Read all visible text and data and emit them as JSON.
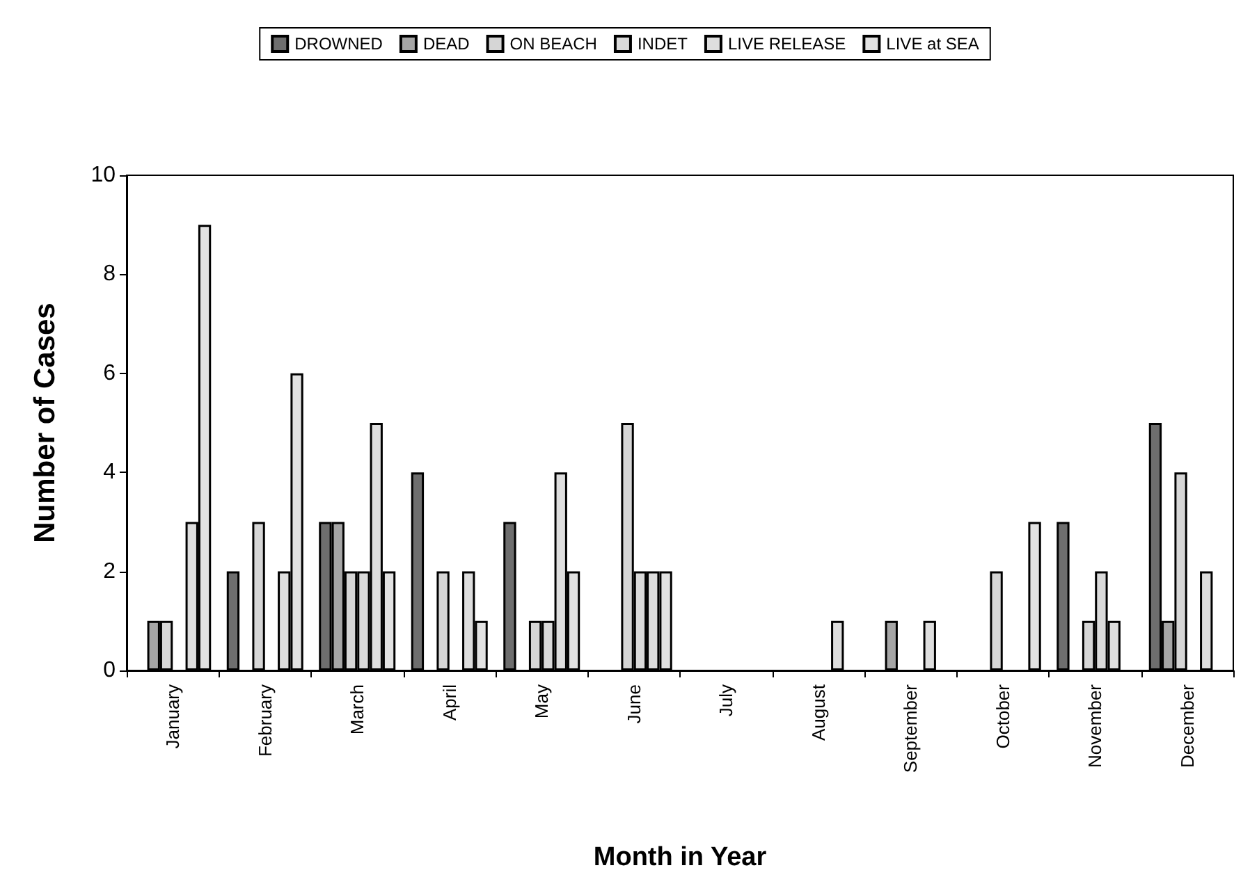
{
  "chart_data": {
    "type": "bar",
    "xlabel": "Month in Year",
    "ylabel": "Number of Cases",
    "categories": [
      "January",
      "February",
      "March",
      "April",
      "May",
      "June",
      "July",
      "August",
      "September",
      "October",
      "November",
      "December"
    ],
    "series": [
      {
        "name": "DROWNED",
        "color": "#6e6e6e",
        "values": [
          0,
          2,
          3,
          4,
          3,
          0,
          0,
          0,
          0,
          0,
          3,
          5
        ]
      },
      {
        "name": "DEAD",
        "color": "#a6a6a6",
        "values": [
          1,
          0,
          3,
          0,
          0,
          0,
          0,
          0,
          1,
          0,
          0,
          1
        ]
      },
      {
        "name": "ON BEACH",
        "color": "#d6d6d6",
        "values": [
          1,
          3,
          2,
          2,
          1,
          5,
          0,
          0,
          0,
          2,
          1,
          4
        ]
      },
      {
        "name": "INDET",
        "color": "#dadada",
        "values": [
          0,
          0,
          2,
          0,
          1,
          2,
          0,
          0,
          0,
          0,
          2,
          0
        ]
      },
      {
        "name": "LIVE RELEASE",
        "color": "#dedede",
        "values": [
          3,
          2,
          5,
          2,
          4,
          2,
          0,
          1,
          1,
          0,
          1,
          2
        ]
      },
      {
        "name": "LIVE at SEA",
        "color": "#e2e2e2",
        "values": [
          9,
          6,
          2,
          1,
          2,
          2,
          0,
          0,
          0,
          3,
          0,
          0
        ]
      }
    ],
    "ylim": [
      0,
      10
    ],
    "yticks": [
      0,
      2,
      4,
      6,
      8,
      10
    ],
    "grid": false,
    "legend": "top"
  }
}
